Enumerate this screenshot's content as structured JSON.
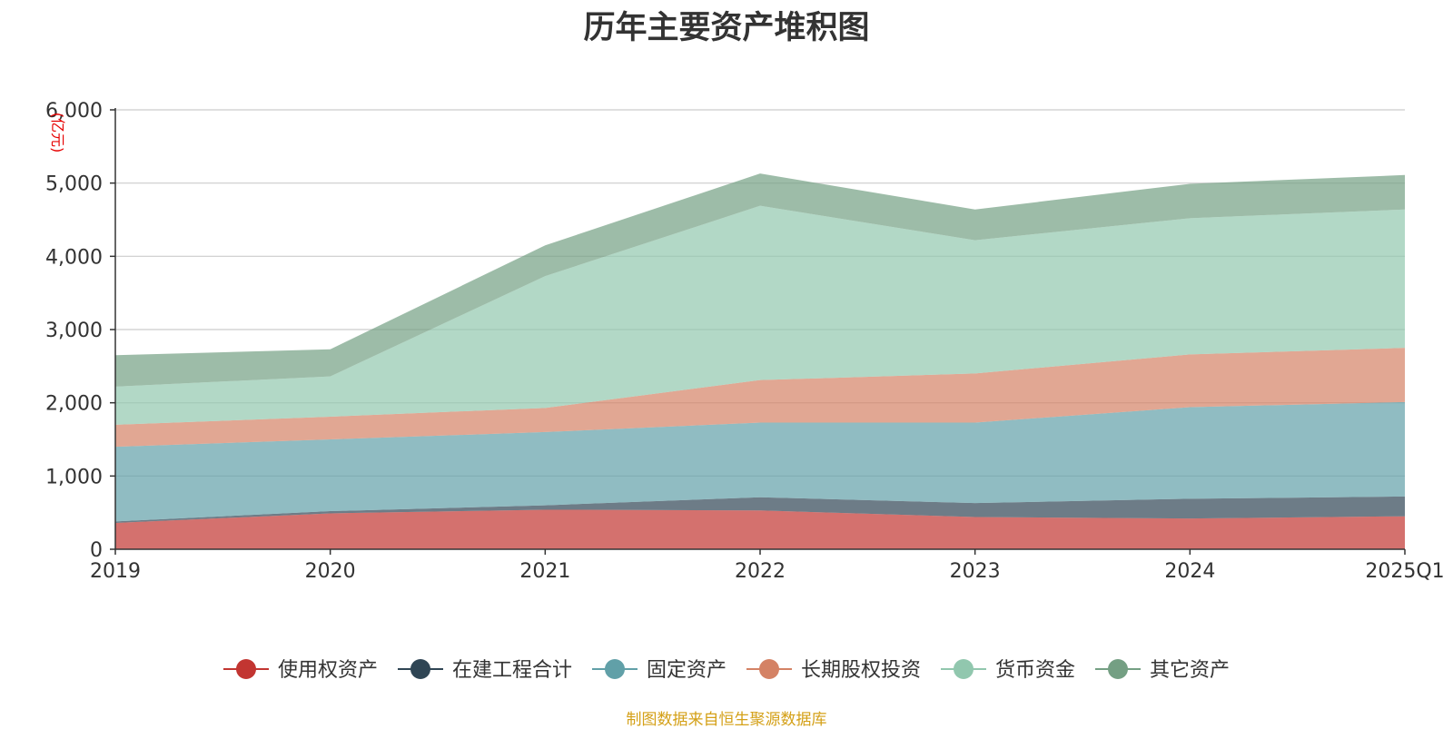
{
  "chart_data": {
    "type": "area",
    "stacked": true,
    "title": "历年主要资产堆积图",
    "unit_label": "亿元",
    "x": [
      "2019",
      "2020",
      "2021",
      "2022",
      "2023",
      "2024",
      "2025Q1"
    ],
    "ylim": [
      0,
      6000
    ],
    "yticks": [
      0,
      1000,
      2000,
      3000,
      4000,
      5000,
      6000
    ],
    "ytick_labels": [
      "0",
      "1,000",
      "2,000",
      "3,000",
      "4,000",
      "5,000",
      "6,000"
    ],
    "grid": true,
    "legend_position": "bottom",
    "series": [
      {
        "name": "使用权资产",
        "color": "#c23531",
        "values": [
          360,
          490,
          540,
          530,
          440,
          420,
          450
        ]
      },
      {
        "name": "在建工程合计",
        "color": "#2f4554",
        "values": [
          20,
          30,
          60,
          180,
          190,
          270,
          270
        ]
      },
      {
        "name": "固定资产",
        "color": "#61a0a8",
        "values": [
          1020,
          980,
          1000,
          1020,
          1100,
          1250,
          1290
        ]
      },
      {
        "name": "长期股权投资",
        "color": "#d48265",
        "values": [
          300,
          310,
          330,
          580,
          670,
          720,
          740
        ]
      },
      {
        "name": "货币资金",
        "color": "#91c7ae",
        "values": [
          520,
          550,
          1800,
          2380,
          1820,
          1860,
          1890
        ]
      },
      {
        "name": "其它资产",
        "color": "#749f83",
        "values": [
          430,
          370,
          420,
          440,
          420,
          470,
          470
        ]
      }
    ]
  },
  "source_note": "制图数据来自恒生聚源数据库"
}
